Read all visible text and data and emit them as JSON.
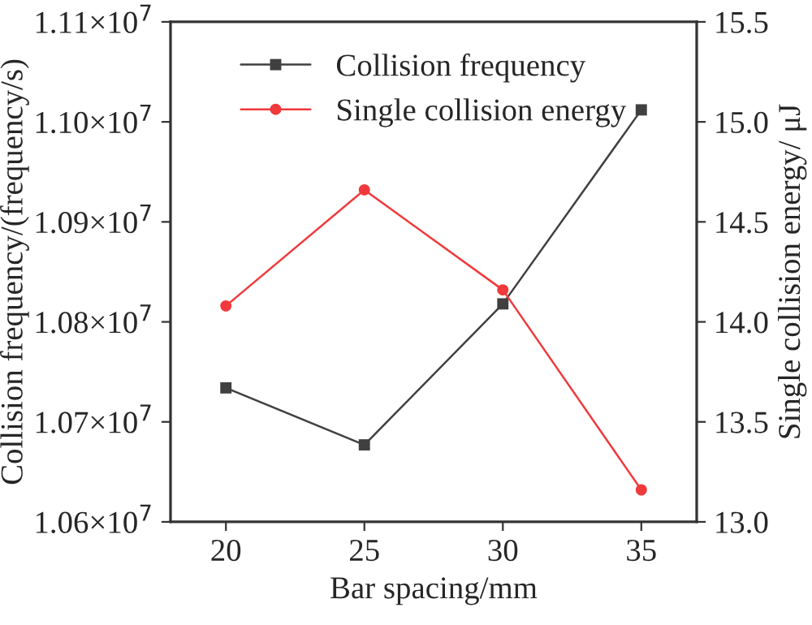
{
  "chart_data": {
    "type": "line",
    "xlabel": "Bar spacing/mm",
    "ylabel": "Collision frequency/(frequency/s)",
    "y2label": "Single collision energy/ μJ",
    "x": [
      20,
      25,
      30,
      35
    ],
    "series": [
      {
        "name": "Collision frequency",
        "color": "#404040",
        "marker": "square",
        "values": [
          10734000,
          10677000,
          10818000,
          11012000
        ]
      },
      {
        "name": "Single collision energy",
        "color": "#f0393b",
        "marker": "circle",
        "axis": "y2",
        "values": [
          14.08,
          14.66,
          14.16,
          13.16
        ]
      }
    ],
    "xlim": [
      18,
      37
    ],
    "xticks": [
      20,
      25,
      30,
      35
    ],
    "ylim": [
      10600000,
      11100000
    ],
    "yticks": [
      {
        "value": 10600000,
        "label": "1.06×10$^{7}$"
      },
      {
        "value": 10700000,
        "label": "1.07×10$^{7}$"
      },
      {
        "value": 10800000,
        "label": "1.08×10$^{7}$"
      },
      {
        "value": 10900000,
        "label": "1.09×10$^{7}$"
      },
      {
        "value": 11000000,
        "label": "1.10×10$^{7}$"
      },
      {
        "value": 11100000,
        "label": "1.11×10$^{7}$"
      }
    ],
    "y2lim": [
      13.0,
      15.5
    ],
    "y2ticks": [
      {
        "value": 13.0,
        "label": "13.0"
      },
      {
        "value": 13.5,
        "label": "13.5"
      },
      {
        "value": 14.0,
        "label": "14.0"
      },
      {
        "value": 14.5,
        "label": "14.5"
      },
      {
        "value": 15.0,
        "label": "15.0"
      },
      {
        "value": 15.5,
        "label": "15.5"
      }
    ],
    "legend": "top",
    "grid": false,
    "line_style": "solid"
  }
}
